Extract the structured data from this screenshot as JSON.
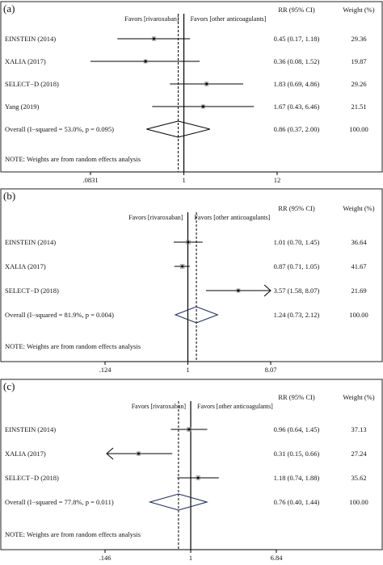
{
  "panels": [
    {
      "label": "(a)",
      "fav_left": "Favors [rivaroxaban]",
      "fav_right": "Favors [other anticoagulants]",
      "col_rr": "RR (95% CI)",
      "col_weight": "Weight (%)",
      "note": "NOTE: Weights are from random effects analysis",
      "ticks": [
        ".0831",
        "1",
        "12"
      ],
      "studies": [
        {
          "name": "EINSTEIN (2014)",
          "rr": 0.45,
          "lo": 0.17,
          "hi": 1.18,
          "ci_text": "0.45 (0.17, 1.18)",
          "weight": "29.36"
        },
        {
          "name": "XALIA (2017)",
          "rr": 0.36,
          "lo": 0.08,
          "hi": 1.52,
          "ci_text": "0.36 (0.08, 1.52)",
          "weight": "19.87"
        },
        {
          "name": "SELECT−D (2018)",
          "rr": 1.83,
          "lo": 0.69,
          "hi": 4.86,
          "ci_text": "1.83 (0.69, 4.86)",
          "weight": "29.26"
        },
        {
          "name": "Yang (2019)",
          "rr": 1.67,
          "lo": 0.43,
          "hi": 6.46,
          "ci_text": "1.67 (0.43, 6.46)",
          "weight": "21.51"
        }
      ],
      "overall": {
        "name": "Overall  (I−squared = 53.0%, p = 0.095)",
        "rr": 0.86,
        "lo": 0.37,
        "hi": 2.0,
        "ci_text": "0.86 (0.37, 2.00)",
        "weight": "100.00"
      }
    },
    {
      "label": "(b)",
      "fav_left": "Favors [rivaroxaban]",
      "fav_right": "Favors [other anticoagulants]",
      "col_rr": "RR (95% CI)",
      "col_weight": "Weight (%)",
      "note": "NOTE: Weights are from random effects analysis",
      "ticks": [
        ".124",
        "1",
        "8.07"
      ],
      "studies": [
        {
          "name": "EINSTEIN (2014)",
          "rr": 1.01,
          "lo": 0.7,
          "hi": 1.45,
          "ci_text": "1.01 (0.70, 1.45)",
          "weight": "36.64"
        },
        {
          "name": "XALIA (2017)",
          "rr": 0.87,
          "lo": 0.71,
          "hi": 1.05,
          "ci_text": "0.87 (0.71, 1.05)",
          "weight": "41.67"
        },
        {
          "name": "SELECT−D (2018)",
          "rr": 3.57,
          "lo": 1.58,
          "hi": 8.07,
          "ci_text": "3.57 (1.58, 8.07)",
          "weight": "21.69",
          "arrow": "right"
        }
      ],
      "overall": {
        "name": "Overall  (I−squared = 81.9%, p = 0.004)",
        "rr": 1.24,
        "lo": 0.73,
        "hi": 2.12,
        "ci_text": "1.24 (0.73, 2.12)",
        "weight": "100.00"
      }
    },
    {
      "label": "(c)",
      "fav_left": "Favors [rivaroxaban]",
      "fav_right": "Favors [other anticoagulants]",
      "col_rr": "RR (95% CI)",
      "col_weight": "Weight (%)",
      "note": "NOTE: Weights are from random effects analysis",
      "ticks": [
        ".146",
        "1",
        "6.84"
      ],
      "studies": [
        {
          "name": "EINSTEIN (2014)",
          "rr": 0.96,
          "lo": 0.64,
          "hi": 1.45,
          "ci_text": "0.96 (0.64, 1.45)",
          "weight": "37.13"
        },
        {
          "name": "XALIA (2017)",
          "rr": 0.31,
          "lo": 0.15,
          "hi": 0.66,
          "ci_text": "0.31 (0.15, 0.66)",
          "weight": "27.24",
          "arrow": "left"
        },
        {
          "name": "SELECT−D (2018)",
          "rr": 1.18,
          "lo": 0.74,
          "hi": 1.88,
          "ci_text": "1.18 (0.74, 1.88)",
          "weight": "35.62"
        }
      ],
      "overall": {
        "name": "Overall  (I−squared = 77.8%, p = 0.011)",
        "rr": 0.76,
        "lo": 0.4,
        "hi": 1.44,
        "ci_text": "0.76 (0.40, 1.44)",
        "weight": "100.00"
      }
    }
  ],
  "chart_data": [
    {
      "type": "forest",
      "xscale": "log",
      "xlim": [
        0.0831,
        12
      ],
      "xticks": [
        0.0831,
        1,
        12
      ],
      "reference_line": 1,
      "studies": [
        {
          "name": "EINSTEIN (2014)",
          "rr": 0.45,
          "lo": 0.17,
          "hi": 1.18,
          "weight": 29.36
        },
        {
          "name": "XALIA (2017)",
          "rr": 0.36,
          "lo": 0.08,
          "hi": 1.52,
          "weight": 19.87
        },
        {
          "name": "SELECT−D (2018)",
          "rr": 1.83,
          "lo": 0.69,
          "hi": 4.86,
          "weight": 29.26
        },
        {
          "name": "Yang (2019)",
          "rr": 1.67,
          "lo": 0.43,
          "hi": 6.46,
          "weight": 21.51
        }
      ],
      "overall": {
        "rr": 0.86,
        "lo": 0.37,
        "hi": 2.0,
        "weight": 100.0,
        "i_squared": "53.0%",
        "p": 0.095
      }
    },
    {
      "type": "forest",
      "xscale": "log",
      "xlim": [
        0.124,
        8.07
      ],
      "xticks": [
        0.124,
        1,
        8.07
      ],
      "reference_line": 1,
      "studies": [
        {
          "name": "EINSTEIN (2014)",
          "rr": 1.01,
          "lo": 0.7,
          "hi": 1.45,
          "weight": 36.64
        },
        {
          "name": "XALIA (2017)",
          "rr": 0.87,
          "lo": 0.71,
          "hi": 1.05,
          "weight": 41.67
        },
        {
          "name": "SELECT−D (2018)",
          "rr": 3.57,
          "lo": 1.58,
          "hi": 8.07,
          "weight": 21.69
        }
      ],
      "overall": {
        "rr": 1.24,
        "lo": 0.73,
        "hi": 2.12,
        "weight": 100.0,
        "i_squared": "81.9%",
        "p": 0.004
      }
    },
    {
      "type": "forest",
      "xscale": "log",
      "xlim": [
        0.146,
        6.84
      ],
      "xticks": [
        0.146,
        1,
        6.84
      ],
      "reference_line": 1,
      "studies": [
        {
          "name": "EINSTEIN (2014)",
          "rr": 0.96,
          "lo": 0.64,
          "hi": 1.45,
          "weight": 37.13
        },
        {
          "name": "XALIA (2017)",
          "rr": 0.31,
          "lo": 0.15,
          "hi": 0.66,
          "weight": 27.24
        },
        {
          "name": "SELECT−D (2018)",
          "rr": 1.18,
          "lo": 0.74,
          "hi": 1.88,
          "weight": 35.62
        }
      ],
      "overall": {
        "rr": 0.76,
        "lo": 0.4,
        "hi": 1.44,
        "weight": 100.0,
        "i_squared": "77.8%",
        "p": 0.011
      }
    }
  ]
}
